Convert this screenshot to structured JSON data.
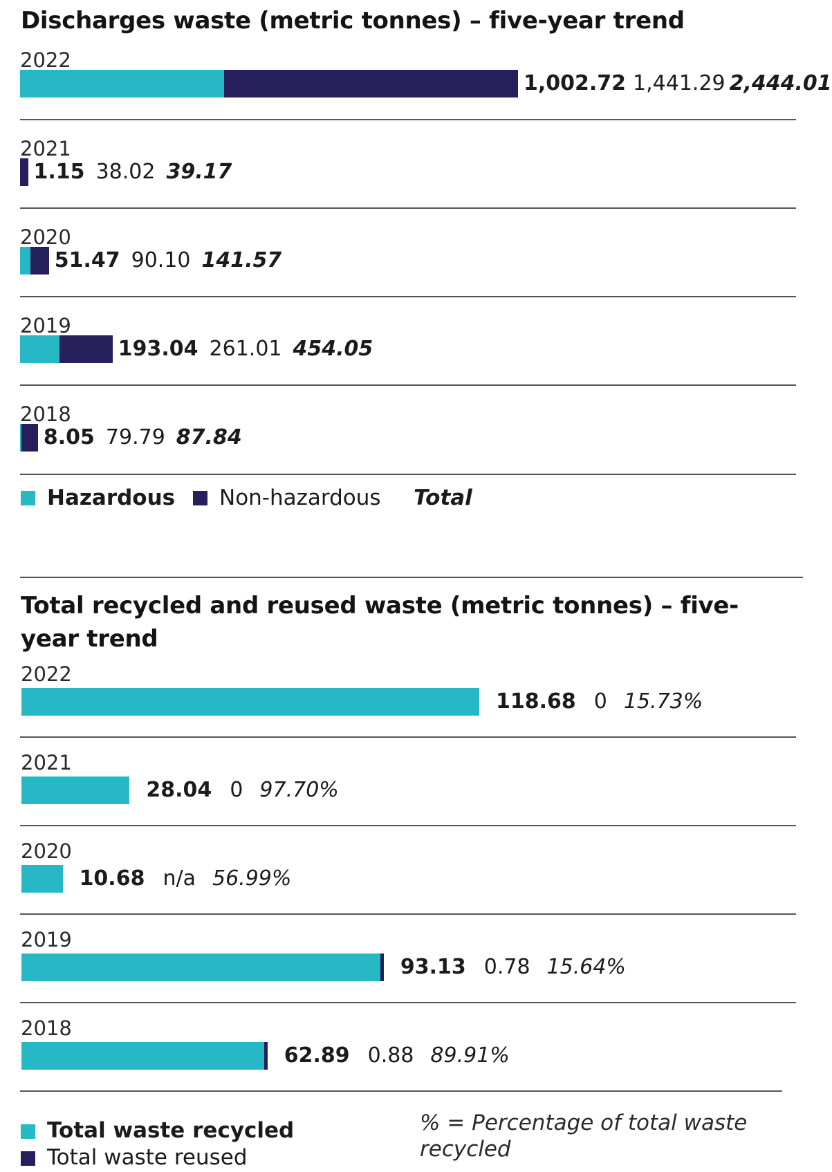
{
  "colors": {
    "hazardous": "#26b8c4",
    "non_hazardous": "#251f5c",
    "recycled": "#26b8c4",
    "reused": "#251f5c",
    "rule": "#555555"
  },
  "chart_data": [
    {
      "type": "bar",
      "orientation": "horizontal",
      "stacked": true,
      "title": "Discharges waste (metric tonnes) – five-year trend",
      "categories": [
        "2022",
        "2021",
        "2020",
        "2019",
        "2018"
      ],
      "series": [
        {
          "name": "Hazardous",
          "values": [
            1002.72,
            1.15,
            51.47,
            193.04,
            8.05
          ],
          "labels": [
            "1,002.72",
            "1.15",
            "51.47",
            "193.04",
            "8.05"
          ]
        },
        {
          "name": "Non-hazardous",
          "values": [
            1441.29,
            38.02,
            90.1,
            261.01,
            79.79
          ],
          "labels": [
            "1,441.29",
            "38.02",
            "90.10",
            "261.01",
            "79.79"
          ]
        }
      ],
      "totals": {
        "name": "Total",
        "values": [
          2444.01,
          39.17,
          141.57,
          454.05,
          87.84
        ],
        "labels": [
          "2,444.01",
          "39.17",
          "141.57",
          "454.05",
          "87.84"
        ]
      },
      "legend": [
        "Hazardous",
        "Non-hazardous",
        "Total"
      ],
      "legend_placement": "bottom-left",
      "grid": false
    },
    {
      "type": "bar",
      "orientation": "horizontal",
      "stacked": true,
      "title": "Total recycled and reused waste (metric tonnes) – five-year trend",
      "categories": [
        "2022",
        "2021",
        "2020",
        "2019",
        "2018"
      ],
      "series": [
        {
          "name": "Total waste recycled",
          "values": [
            118.68,
            28.04,
            10.68,
            93.13,
            62.89
          ],
          "labels": [
            "118.68",
            "28.04",
            "10.68",
            "93.13",
            "62.89"
          ]
        },
        {
          "name": "Total waste reused",
          "values": [
            0,
            0,
            null,
            0.78,
            0.88
          ],
          "labels": [
            "0",
            "0",
            "n/a",
            "0.78",
            "0.88"
          ]
        }
      ],
      "percentages": {
        "values": [
          15.73,
          97.7,
          56.99,
          15.64,
          89.91
        ],
        "labels": [
          "15.73%",
          "97.70%",
          "56.99%",
          "15.64%",
          "89.91%"
        ]
      },
      "legend": [
        "Total waste recycled",
        "Total waste reused"
      ],
      "legend_placement": "bottom-left",
      "note": "% = Percentage of total waste recycled",
      "grid": false
    }
  ]
}
